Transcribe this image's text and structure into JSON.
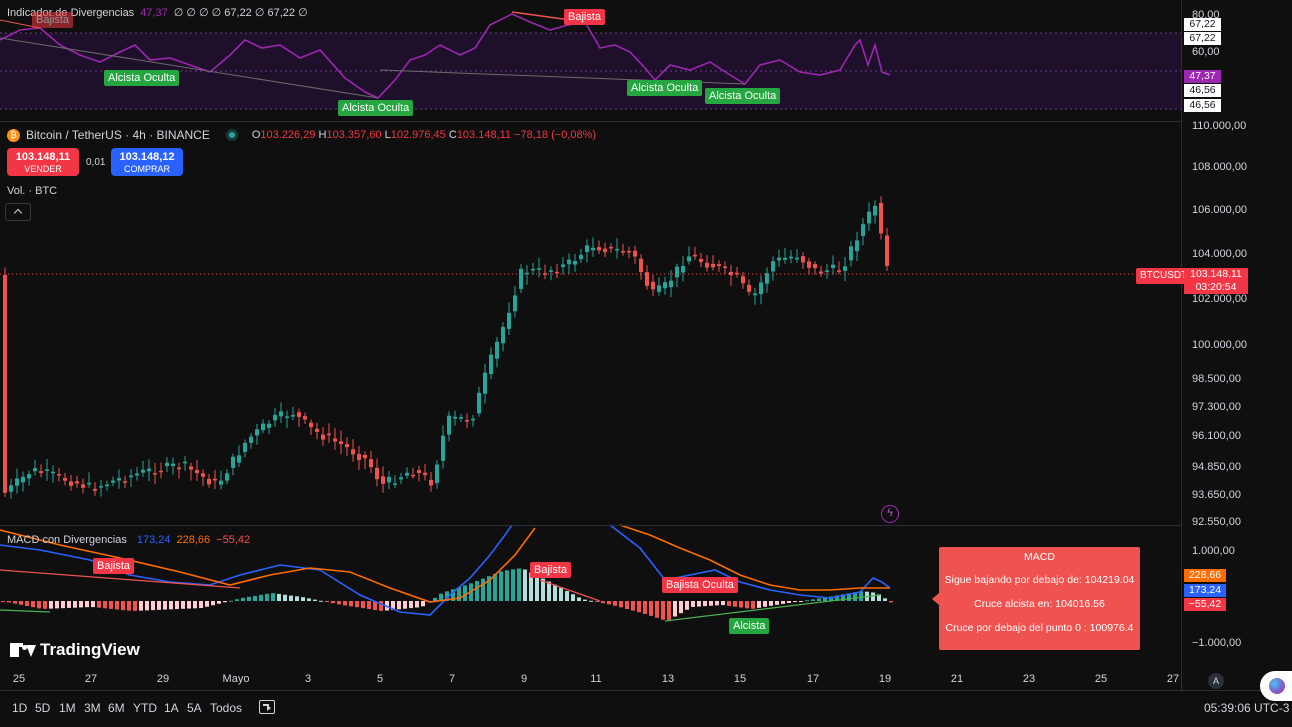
{
  "rsi": {
    "title": "Indicador de Divergencias",
    "value": "47,37",
    "params": "∅ ∅ ∅ ∅ 67,22 ∅ 67,22 ∅",
    "axis_labels": [
      "80,00",
      "60,00"
    ],
    "price_labels": {
      "upper1": "67,22",
      "upper2": "67,22",
      "current": "47,37",
      "lower1": "46,56",
      "lower2": "46,56"
    },
    "tags": {
      "bajista_top": "Bajista",
      "bajista_left": "Bajista",
      "alcista_1": "Alcista Oculta",
      "alcista_2": "Alcista Oculta",
      "alcista_3": "Alcista Oculta",
      "alcista_4": "Alcista Oculta"
    }
  },
  "main": {
    "symbol": "Bitcoin / TetherUS · 4h · BINANCE",
    "ohlc": {
      "o_label": "O",
      "o": "103.226,29",
      "h_label": "H",
      "h": "103.357,60",
      "l_label": "L",
      "l": "102.976,45",
      "c_label": "C",
      "c": "103.148,11",
      "change": "−78,18 (−0,08%)"
    },
    "sell": {
      "price": "103.148,11",
      "label": "VENDER"
    },
    "spread": "0,01",
    "buy": {
      "price": "103.148,12",
      "label": "COMPRAR"
    },
    "volume_label": "Vol. · BTC",
    "collapse_icon": "chevron-up-icon",
    "symbol_tag": "BTCUSDT",
    "last_price": "103.148,11",
    "countdown": "03:20:54",
    "axis_labels": [
      "110.000,00",
      "108.000,00",
      "106.000,00",
      "104.000,00",
      "102.000,00",
      "100.000,00",
      "98.500,00",
      "97.300,00",
      "96.100,00",
      "94.850,00",
      "93.650,00",
      "92.550,00"
    ],
    "colors": {
      "up": "#26a69a",
      "down": "#ef5350",
      "rsi": "#9c27b0"
    }
  },
  "macd": {
    "title": "MACD con Divergencias",
    "macd_value": "173,24",
    "signal_value": "228,66",
    "hist_value": "−55,42",
    "axis_labels": [
      "1.000,00",
      "−1.000,00"
    ],
    "tags": {
      "bajista_1": "Bajista",
      "bajista_2": "Bajista",
      "bajista_oculta": "Bajista Oculta",
      "alcista": "Alcista"
    },
    "popup": {
      "title": "MACD",
      "line1": "Sigue bajando por debajo de: 104219.04",
      "line2": "Cruce alcista en: 104016.56",
      "line3": "Cruce por debajo del punto 0 : 100976.4"
    }
  },
  "brand": "TradingView",
  "dates": [
    "25",
    "27",
    "29",
    "Mayo",
    "3",
    "5",
    "7",
    "9",
    "11",
    "13",
    "15",
    "17",
    "19",
    "21",
    "23",
    "25",
    "27"
  ],
  "toolbar": {
    "timeframes": [
      "1D",
      "5D",
      "1M",
      "3M",
      "6M",
      "YTD",
      "1A",
      "5A",
      "Todos"
    ],
    "clock": "05:39:06 UTC-3",
    "auto_label": "A"
  }
}
